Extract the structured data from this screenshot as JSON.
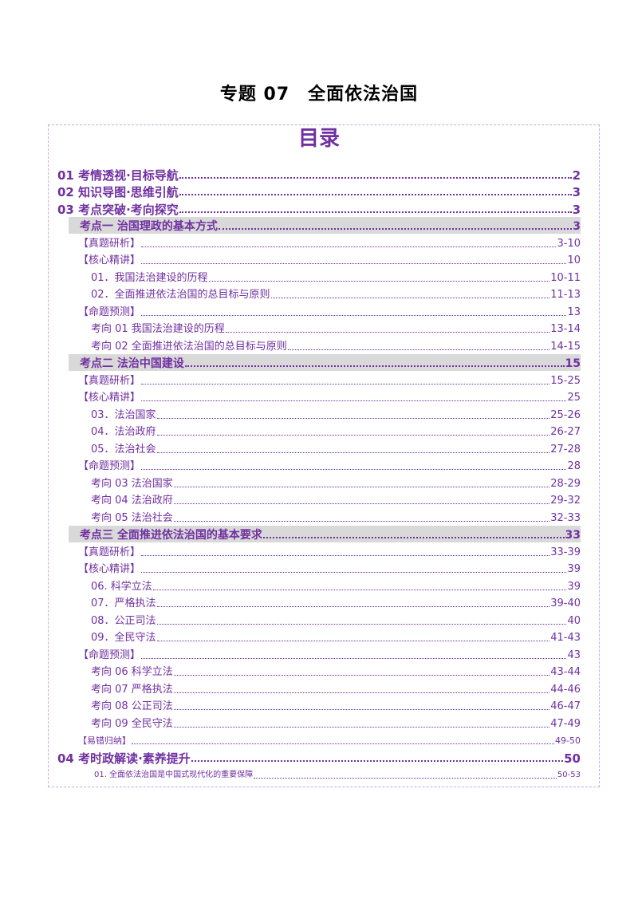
{
  "document": {
    "title": "专题 07　全面依法治国",
    "toc_heading": "目录"
  },
  "colors": {
    "accent": "#7030a0",
    "border": "#c9a8e0",
    "highlight": "#d9d9d9"
  },
  "toc": [
    {
      "level": "l1",
      "label": "01 考情透视·目标导航",
      "page": "2"
    },
    {
      "level": "l1",
      "label": "02 知识导图·思维引航",
      "page": "3"
    },
    {
      "level": "l1",
      "label": "03 考点突破·考向探究",
      "page": "3"
    },
    {
      "level": "l2",
      "label": "考点一  治国理政的基本方式",
      "page": "3"
    },
    {
      "level": "l3",
      "label": "【真题研析】",
      "page": "3-10"
    },
    {
      "level": "l3",
      "label": "【核心精讲】",
      "page": "10"
    },
    {
      "level": "l4",
      "label": "01．我国法治建设的历程",
      "page": "10-11"
    },
    {
      "level": "l4",
      "label": "02．全面推进依法治国的总目标与原则",
      "page": "11-13"
    },
    {
      "level": "l3",
      "label": "【命题预测】",
      "page": "13"
    },
    {
      "level": "l4",
      "label": "考向 01  我国法治建设的历程",
      "page": "13-14"
    },
    {
      "level": "l4",
      "label": "考向 02  全面推进依法治国的总目标与原则",
      "page": "14-15"
    },
    {
      "level": "l2",
      "label": "考点二  法治中国建设",
      "page": "15"
    },
    {
      "level": "l3",
      "label": "【真题研析】",
      "page": "15-25"
    },
    {
      "level": "l3",
      "label": "【核心精讲】",
      "page": "25"
    },
    {
      "level": "l4",
      "label": "03．法治国家",
      "page": "25-26"
    },
    {
      "level": "l4",
      "label": "04．法治政府",
      "page": "26-27"
    },
    {
      "level": "l4",
      "label": "05．法治社会",
      "page": "27-28"
    },
    {
      "level": "l3",
      "label": "【命题预测】",
      "page": "28"
    },
    {
      "level": "l4",
      "label": "考向 03  法治国家",
      "page": "28-29"
    },
    {
      "level": "l4",
      "label": "考向 04  法治政府",
      "page": "29-32"
    },
    {
      "level": "l4",
      "label": "考向 05  法治社会",
      "page": "32-33"
    },
    {
      "level": "l2",
      "label": "考点三  全面推进依法治国的基本要求",
      "page": "33"
    },
    {
      "level": "l3",
      "label": "【真题研析】",
      "page": "33-39"
    },
    {
      "level": "l3",
      "label": "【核心精讲】",
      "page": "39"
    },
    {
      "level": "l4",
      "label": "06. 科学立法",
      "page": "39"
    },
    {
      "level": "l4",
      "label": "07．严格执法",
      "page": "39-40"
    },
    {
      "level": "l4",
      "label": "08．公正司法",
      "page": "40"
    },
    {
      "level": "l4",
      "label": "09．全民守法",
      "page": "41-43"
    },
    {
      "level": "l3",
      "label": "【命题预测】",
      "page": "43"
    },
    {
      "level": "l4",
      "label": "考向 06  科学立法",
      "page": "43-44"
    },
    {
      "level": "l4",
      "label": "考向 07  严格执法",
      "page": "44-46"
    },
    {
      "level": "l4",
      "label": "考向 08  公正司法",
      "page": "46-47"
    },
    {
      "level": "l4",
      "label": "考向 09  全民守法",
      "page": "47-49"
    },
    {
      "level": "l3s",
      "label": "【易错归纳】",
      "page": "49-50"
    },
    {
      "level": "l1",
      "label": "04 考时政解读·素养提升",
      "page": "50"
    },
    {
      "level": "l4s",
      "label": "01.  全面依法治国是中国式现代化的重要保障",
      "page": "50-53"
    }
  ]
}
